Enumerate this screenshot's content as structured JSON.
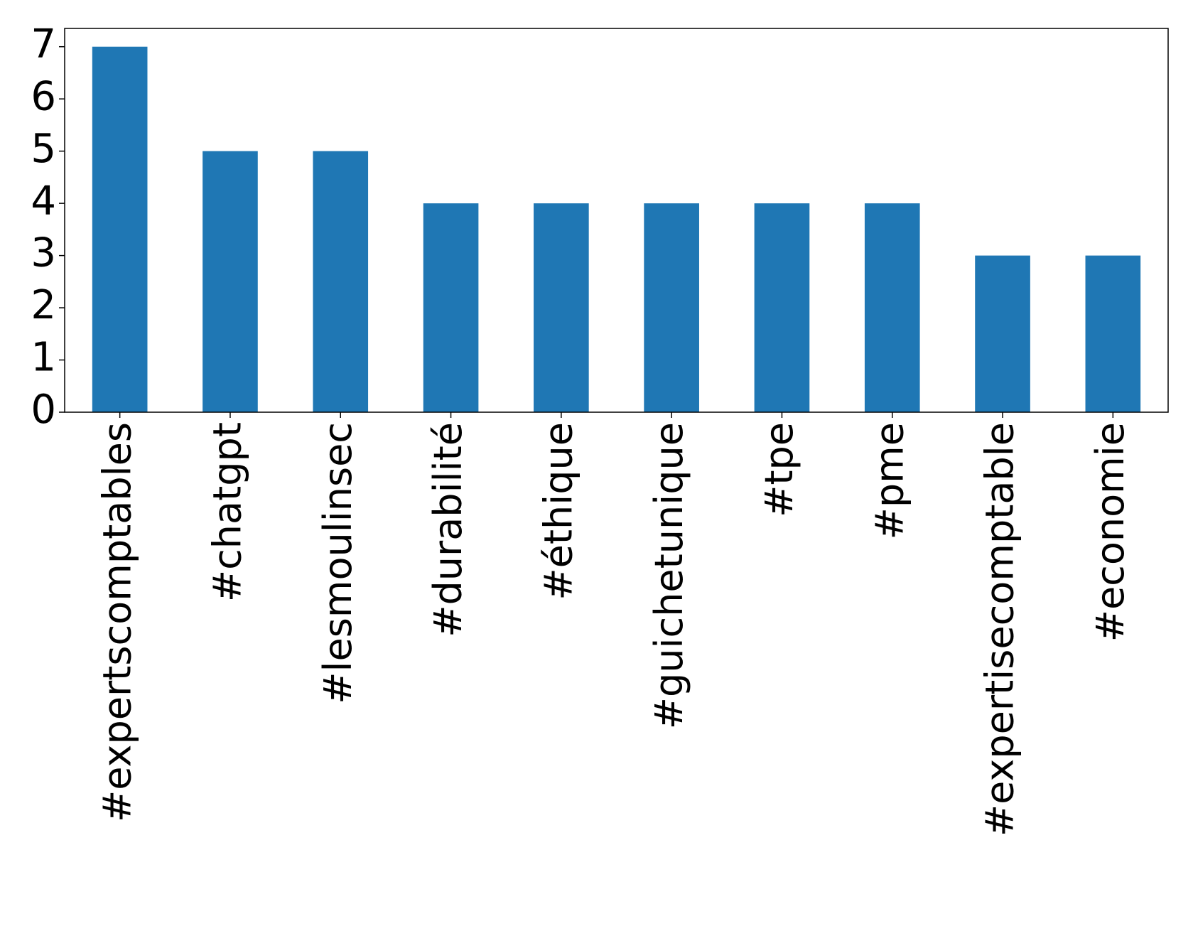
{
  "chart_data": {
    "type": "bar",
    "categories": [
      "#expertscomptables",
      "#chatgpt",
      "#lesmoulinsec",
      "#durabilité",
      "#éthique",
      "#guichetunique",
      "#tpe",
      "#pme",
      "#expertisecomptable",
      "#economie"
    ],
    "values": [
      7,
      5,
      5,
      4,
      4,
      4,
      4,
      4,
      3,
      3
    ],
    "color": "#1f77b4",
    "ylim": [
      0,
      7.35
    ],
    "yticks": [
      0,
      1,
      2,
      3,
      4,
      5,
      6,
      7
    ],
    "grid": false
  }
}
